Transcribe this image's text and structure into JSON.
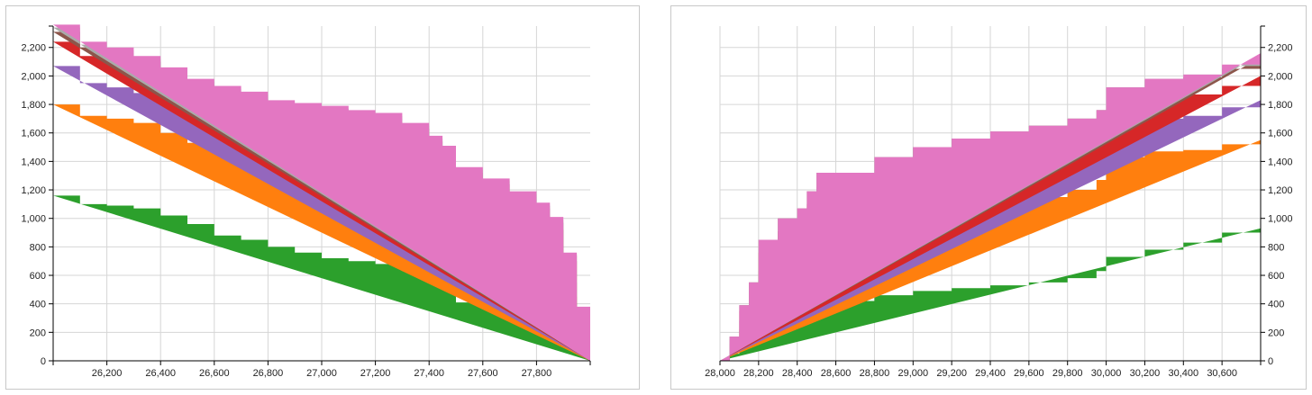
{
  "chart_data": [
    {
      "type": "area",
      "stacked": true,
      "step": true,
      "xlim": [
        26000,
        28000
      ],
      "ylim": [
        0,
        2350
      ],
      "x_ticks": [
        26200,
        26400,
        26600,
        26800,
        27000,
        27200,
        27400,
        27600,
        27800
      ],
      "x_tick_labels": [
        "26,200",
        "26,400",
        "26,600",
        "26,800",
        "27,000",
        "27,200",
        "27,400",
        "27,600",
        "27,800"
      ],
      "y_ticks": [
        0,
        200,
        400,
        600,
        800,
        1000,
        1200,
        1400,
        1600,
        1800,
        2000,
        2200
      ],
      "y_tick_labels": [
        "0",
        "200",
        "400",
        "600",
        "800",
        "1,000",
        "1,200",
        "1,400",
        "1,600",
        "1,800",
        "2,000",
        "2,200"
      ],
      "y_axis_side": "left",
      "grid": true,
      "x": [
        26000,
        26100,
        26200,
        26300,
        26400,
        26500,
        26600,
        26700,
        26800,
        26900,
        27000,
        27100,
        27200,
        27300,
        27400,
        27450,
        27500,
        27600,
        27700,
        27800,
        27850,
        27900,
        27950,
        28000
      ],
      "series": [
        {
          "color": "#2ca02c",
          "values": [
            1160,
            1100,
            1090,
            1070,
            1020,
            960,
            880,
            850,
            800,
            760,
            720,
            700,
            680,
            630,
            580,
            540,
            410,
            390,
            360,
            330,
            280,
            170,
            90,
            0
          ]
        },
        {
          "color": "#ff7f0e",
          "values": [
            640,
            620,
            610,
            600,
            580,
            570,
            610,
            600,
            590,
            600,
            610,
            610,
            620,
            620,
            600,
            590,
            560,
            490,
            440,
            400,
            370,
            280,
            120,
            0
          ]
        },
        {
          "color": "#9467bd",
          "values": [
            270,
            230,
            220,
            210,
            200,
            190,
            180,
            180,
            180,
            190,
            190,
            180,
            170,
            160,
            150,
            140,
            140,
            140,
            130,
            120,
            110,
            100,
            40,
            0
          ]
        },
        {
          "color": "#d62728",
          "values": [
            170,
            190,
            180,
            170,
            170,
            170,
            170,
            170,
            170,
            170,
            180,
            180,
            180,
            170,
            160,
            150,
            160,
            170,
            170,
            170,
            160,
            150,
            100,
            0
          ]
        },
        {
          "color": "#8c564b",
          "values": [
            70,
            60,
            60,
            50,
            50,
            50,
            50,
            50,
            50,
            50,
            50,
            50,
            50,
            50,
            50,
            50,
            50,
            50,
            50,
            50,
            50,
            40,
            20,
            0
          ]
        },
        {
          "color": "#aaaaaa",
          "values": [
            30,
            20,
            20,
            20,
            20,
            20,
            20,
            20,
            20,
            20,
            20,
            20,
            20,
            20,
            20,
            20,
            20,
            20,
            20,
            20,
            20,
            10,
            5,
            0
          ]
        },
        {
          "color": "#e377c2",
          "values": [
            20,
            20,
            20,
            20,
            20,
            20,
            20,
            20,
            20,
            20,
            20,
            20,
            20,
            20,
            20,
            20,
            20,
            20,
            20,
            20,
            20,
            10,
            5,
            0
          ]
        }
      ]
    },
    {
      "type": "area",
      "stacked": true,
      "step": true,
      "xlim": [
        28000,
        30800
      ],
      "ylim": [
        0,
        2350
      ],
      "x_ticks": [
        28000,
        28200,
        28400,
        28600,
        28800,
        29000,
        29200,
        29400,
        29600,
        29800,
        30000,
        30200,
        30400,
        30600
      ],
      "x_tick_labels": [
        "28,000",
        "28,200",
        "28,400",
        "28,600",
        "28,800",
        "29,000",
        "29,200",
        "29,400",
        "29,600",
        "29,800",
        "30,000",
        "30,200",
        "30,400",
        "30,600"
      ],
      "y_ticks": [
        0,
        200,
        400,
        600,
        800,
        1000,
        1200,
        1400,
        1600,
        1800,
        2000,
        2200
      ],
      "y_tick_labels": [
        "0",
        "200",
        "400",
        "600",
        "800",
        "1,000",
        "1,200",
        "1,400",
        "1,600",
        "1,800",
        "2,000",
        "2,200"
      ],
      "y_axis_side": "right",
      "grid": true,
      "x": [
        28000,
        28050,
        28100,
        28150,
        28200,
        28300,
        28400,
        28450,
        28500,
        28600,
        28800,
        29000,
        29200,
        29400,
        29600,
        29800,
        29950,
        30000,
        30200,
        30400,
        30600,
        30800
      ],
      "series": [
        {
          "color": "#2ca02c",
          "values": [
            0,
            50,
            120,
            190,
            270,
            290,
            300,
            320,
            350,
            420,
            460,
            490,
            510,
            530,
            550,
            580,
            630,
            730,
            780,
            830,
            900,
            930
          ]
        },
        {
          "color": "#ff7f0e",
          "values": [
            0,
            40,
            100,
            130,
            250,
            330,
            370,
            450,
            520,
            460,
            510,
            540,
            580,
            590,
            600,
            620,
            640,
            700,
            690,
            650,
            620,
            620
          ]
        },
        {
          "color": "#9467bd",
          "values": [
            0,
            30,
            60,
            90,
            110,
            160,
            170,
            180,
            200,
            200,
            210,
            200,
            200,
            210,
            220,
            230,
            220,
            220,
            230,
            240,
            260,
            280
          ]
        },
        {
          "color": "#d62728",
          "values": [
            0,
            30,
            70,
            80,
            130,
            130,
            140,
            150,
            150,
            130,
            140,
            150,
            150,
            160,
            160,
            160,
            150,
            150,
            150,
            150,
            150,
            170
          ]
        },
        {
          "color": "#8c564b",
          "values": [
            0,
            20,
            40,
            60,
            90,
            90,
            90,
            90,
            100,
            110,
            110,
            120,
            120,
            120,
            120,
            110,
            120,
            120,
            120,
            120,
            120,
            130
          ]
        },
        {
          "color": "#aaaaaa",
          "values": [
            0,
            0,
            0,
            0,
            0,
            0,
            0,
            0,
            0,
            0,
            0,
            0,
            0,
            0,
            0,
            0,
            0,
            0,
            10,
            20,
            20,
            20
          ]
        },
        {
          "color": "#e377c2",
          "values": [
            0,
            0,
            0,
            0,
            0,
            0,
            0,
            0,
            0,
            0,
            0,
            0,
            0,
            0,
            0,
            0,
            0,
            0,
            0,
            0,
            10,
            10
          ]
        }
      ]
    }
  ]
}
